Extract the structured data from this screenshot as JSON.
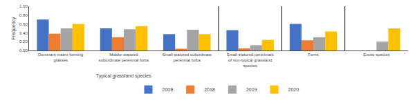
{
  "chart_data": {
    "type": "bar",
    "categories": [
      "Dominant matrix forming\ngrasses",
      "Middle-statured\nsubordinate perennial forbs",
      "Small-statured subordinate\nperennial forbs",
      "Small-statured perennials\nof non-typical grassland\nspecies",
      "Ferns",
      "Exotic species"
    ],
    "series": [
      {
        "name": "2008",
        "color": "#4472C4",
        "values": [
          0.7,
          0.5,
          0.37,
          0.46,
          0.6,
          0.0
        ]
      },
      {
        "name": "2018",
        "color": "#ED7D31",
        "values": [
          0.38,
          0.3,
          0.04,
          0.05,
          0.23,
          0.0
        ]
      },
      {
        "name": "2019",
        "color": "#A5A5A5",
        "values": [
          0.5,
          0.48,
          0.47,
          0.12,
          0.3,
          0.2
        ]
      },
      {
        "name": "2020",
        "color": "#FFC000",
        "values": [
          0.6,
          0.55,
          0.37,
          0.24,
          0.43,
          0.5
        ]
      }
    ],
    "ylabel": "Frequency",
    "ylim": [
      0.0,
      1.0
    ],
    "yticks": [
      {
        "value": 0.0,
        "label": "0.00"
      },
      {
        "value": 0.2,
        "label": "0.20"
      },
      {
        "value": 0.4,
        "label": "0.40"
      },
      {
        "value": 0.6,
        "label": "0.60"
      },
      {
        "value": 0.8,
        "label": "0.80"
      },
      {
        "value": 1.0,
        "label": "1.00"
      }
    ],
    "annotations": [
      "Typical grassland species"
    ],
    "grid": false,
    "legend": "bottom"
  }
}
